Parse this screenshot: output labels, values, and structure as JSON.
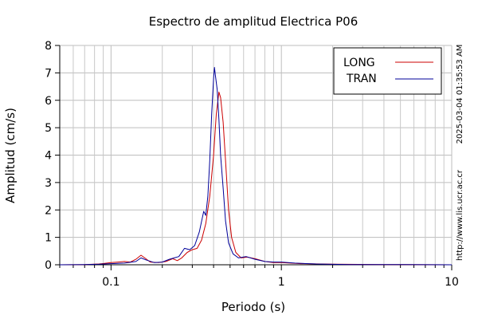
{
  "chart_data": {
    "type": "line",
    "title": "Espectro de amplitud Electrica P06",
    "xlabel": "Periodo (s)",
    "ylabel": "Amplitud (cm/s)",
    "x_scale": "log",
    "xlim": [
      0.05,
      10
    ],
    "ylim": [
      0,
      8
    ],
    "x_ticks": [
      {
        "value": 0.1,
        "label": "0.1"
      },
      {
        "value": 1,
        "label": "1"
      },
      {
        "value": 10,
        "label": "10"
      }
    ],
    "y_ticks": [
      {
        "value": 0,
        "label": "0"
      },
      {
        "value": 1,
        "label": "1"
      },
      {
        "value": 2,
        "label": "2"
      },
      {
        "value": 3,
        "label": "3"
      },
      {
        "value": 4,
        "label": "4"
      },
      {
        "value": 5,
        "label": "5"
      },
      {
        "value": 6,
        "label": "6"
      },
      {
        "value": 7,
        "label": "7"
      },
      {
        "value": 8,
        "label": "8"
      }
    ],
    "grid": true,
    "legend_position": "top-right",
    "series": [
      {
        "name": "LONG",
        "color": "#cc0000",
        "points": [
          [
            0.05,
            0.0
          ],
          [
            0.07,
            0.01
          ],
          [
            0.085,
            0.03
          ],
          [
            0.1,
            0.08
          ],
          [
            0.11,
            0.1
          ],
          [
            0.12,
            0.12
          ],
          [
            0.13,
            0.1
          ],
          [
            0.14,
            0.2
          ],
          [
            0.15,
            0.35
          ],
          [
            0.16,
            0.22
          ],
          [
            0.17,
            0.1
          ],
          [
            0.19,
            0.08
          ],
          [
            0.21,
            0.12
          ],
          [
            0.23,
            0.22
          ],
          [
            0.245,
            0.15
          ],
          [
            0.26,
            0.25
          ],
          [
            0.28,
            0.45
          ],
          [
            0.3,
            0.55
          ],
          [
            0.32,
            0.6
          ],
          [
            0.34,
            0.9
          ],
          [
            0.36,
            1.5
          ],
          [
            0.38,
            2.5
          ],
          [
            0.4,
            4.0
          ],
          [
            0.415,
            5.5
          ],
          [
            0.43,
            6.3
          ],
          [
            0.44,
            6.1
          ],
          [
            0.455,
            5.2
          ],
          [
            0.47,
            3.8
          ],
          [
            0.49,
            2.0
          ],
          [
            0.51,
            1.0
          ],
          [
            0.54,
            0.45
          ],
          [
            0.58,
            0.25
          ],
          [
            0.63,
            0.28
          ],
          [
            0.7,
            0.22
          ],
          [
            0.8,
            0.12
          ],
          [
            0.9,
            0.08
          ],
          [
            1.0,
            0.08
          ],
          [
            1.3,
            0.04
          ],
          [
            2.0,
            0.02
          ],
          [
            4.0,
            0.01
          ],
          [
            10.0,
            0.0
          ]
        ]
      },
      {
        "name": "TRAN",
        "color": "#000099",
        "points": [
          [
            0.05,
            0.0
          ],
          [
            0.07,
            0.01
          ],
          [
            0.085,
            0.02
          ],
          [
            0.1,
            0.04
          ],
          [
            0.12,
            0.06
          ],
          [
            0.14,
            0.12
          ],
          [
            0.15,
            0.25
          ],
          [
            0.16,
            0.18
          ],
          [
            0.18,
            0.08
          ],
          [
            0.2,
            0.1
          ],
          [
            0.22,
            0.2
          ],
          [
            0.235,
            0.25
          ],
          [
            0.25,
            0.3
          ],
          [
            0.27,
            0.6
          ],
          [
            0.29,
            0.55
          ],
          [
            0.31,
            0.7
          ],
          [
            0.33,
            1.2
          ],
          [
            0.35,
            1.95
          ],
          [
            0.36,
            1.8
          ],
          [
            0.37,
            2.5
          ],
          [
            0.38,
            3.8
          ],
          [
            0.39,
            5.5
          ],
          [
            0.4,
            6.8
          ],
          [
            0.405,
            7.2
          ],
          [
            0.41,
            6.9
          ],
          [
            0.42,
            6.4
          ],
          [
            0.43,
            5.3
          ],
          [
            0.44,
            4.0
          ],
          [
            0.455,
            2.8
          ],
          [
            0.47,
            1.6
          ],
          [
            0.49,
            0.8
          ],
          [
            0.52,
            0.4
          ],
          [
            0.56,
            0.25
          ],
          [
            0.62,
            0.3
          ],
          [
            0.7,
            0.2
          ],
          [
            0.8,
            0.12
          ],
          [
            0.9,
            0.1
          ],
          [
            1.0,
            0.1
          ],
          [
            1.2,
            0.06
          ],
          [
            1.6,
            0.03
          ],
          [
            2.5,
            0.01
          ],
          [
            5.0,
            0.01
          ],
          [
            10.0,
            0.0
          ]
        ]
      }
    ]
  },
  "side_labels": {
    "timestamp": "2025-03-04 01:35:53 AM",
    "url": "http://www.lis.ucr.ac.cr"
  }
}
